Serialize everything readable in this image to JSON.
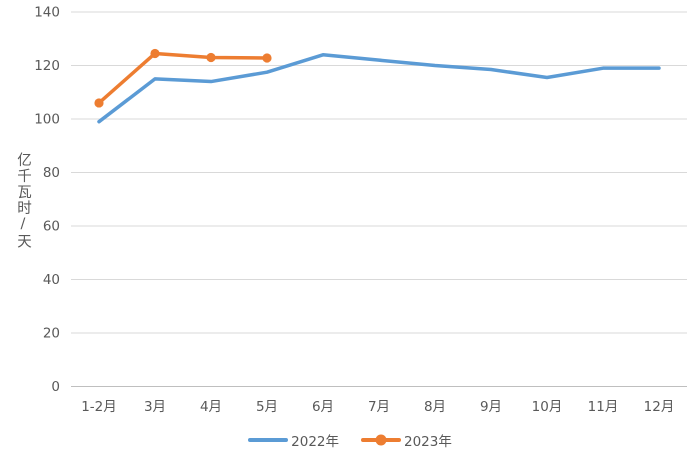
{
  "chart_data": {
    "type": "line",
    "categories": [
      "1-2月",
      "3月",
      "4月",
      "5月",
      "6月",
      "7月",
      "8月",
      "9月",
      "10月",
      "11月",
      "12月"
    ],
    "series": [
      {
        "name": "2022年",
        "color": "#5B9BD5",
        "marker": false,
        "values": [
          99,
          115,
          114,
          117.5,
          124,
          122,
          120,
          118.5,
          115.5,
          119,
          119
        ]
      },
      {
        "name": "2023年",
        "color": "#ED7D31",
        "marker": true,
        "values": [
          106,
          124.5,
          123,
          122.8
        ]
      }
    ],
    "title": "",
    "xlabel": "",
    "ylabel": "亿千瓦时/天",
    "ylim": [
      0,
      140
    ],
    "ytick_step": 20,
    "yticks": [
      0,
      20,
      40,
      60,
      80,
      100,
      120,
      140
    ],
    "grid": true,
    "legend_position": "bottom"
  },
  "colors": {
    "text": "#595959",
    "gridline": "#D9D9D9",
    "axis_line": "#BFBFBF",
    "background": "#FFFFFF"
  }
}
